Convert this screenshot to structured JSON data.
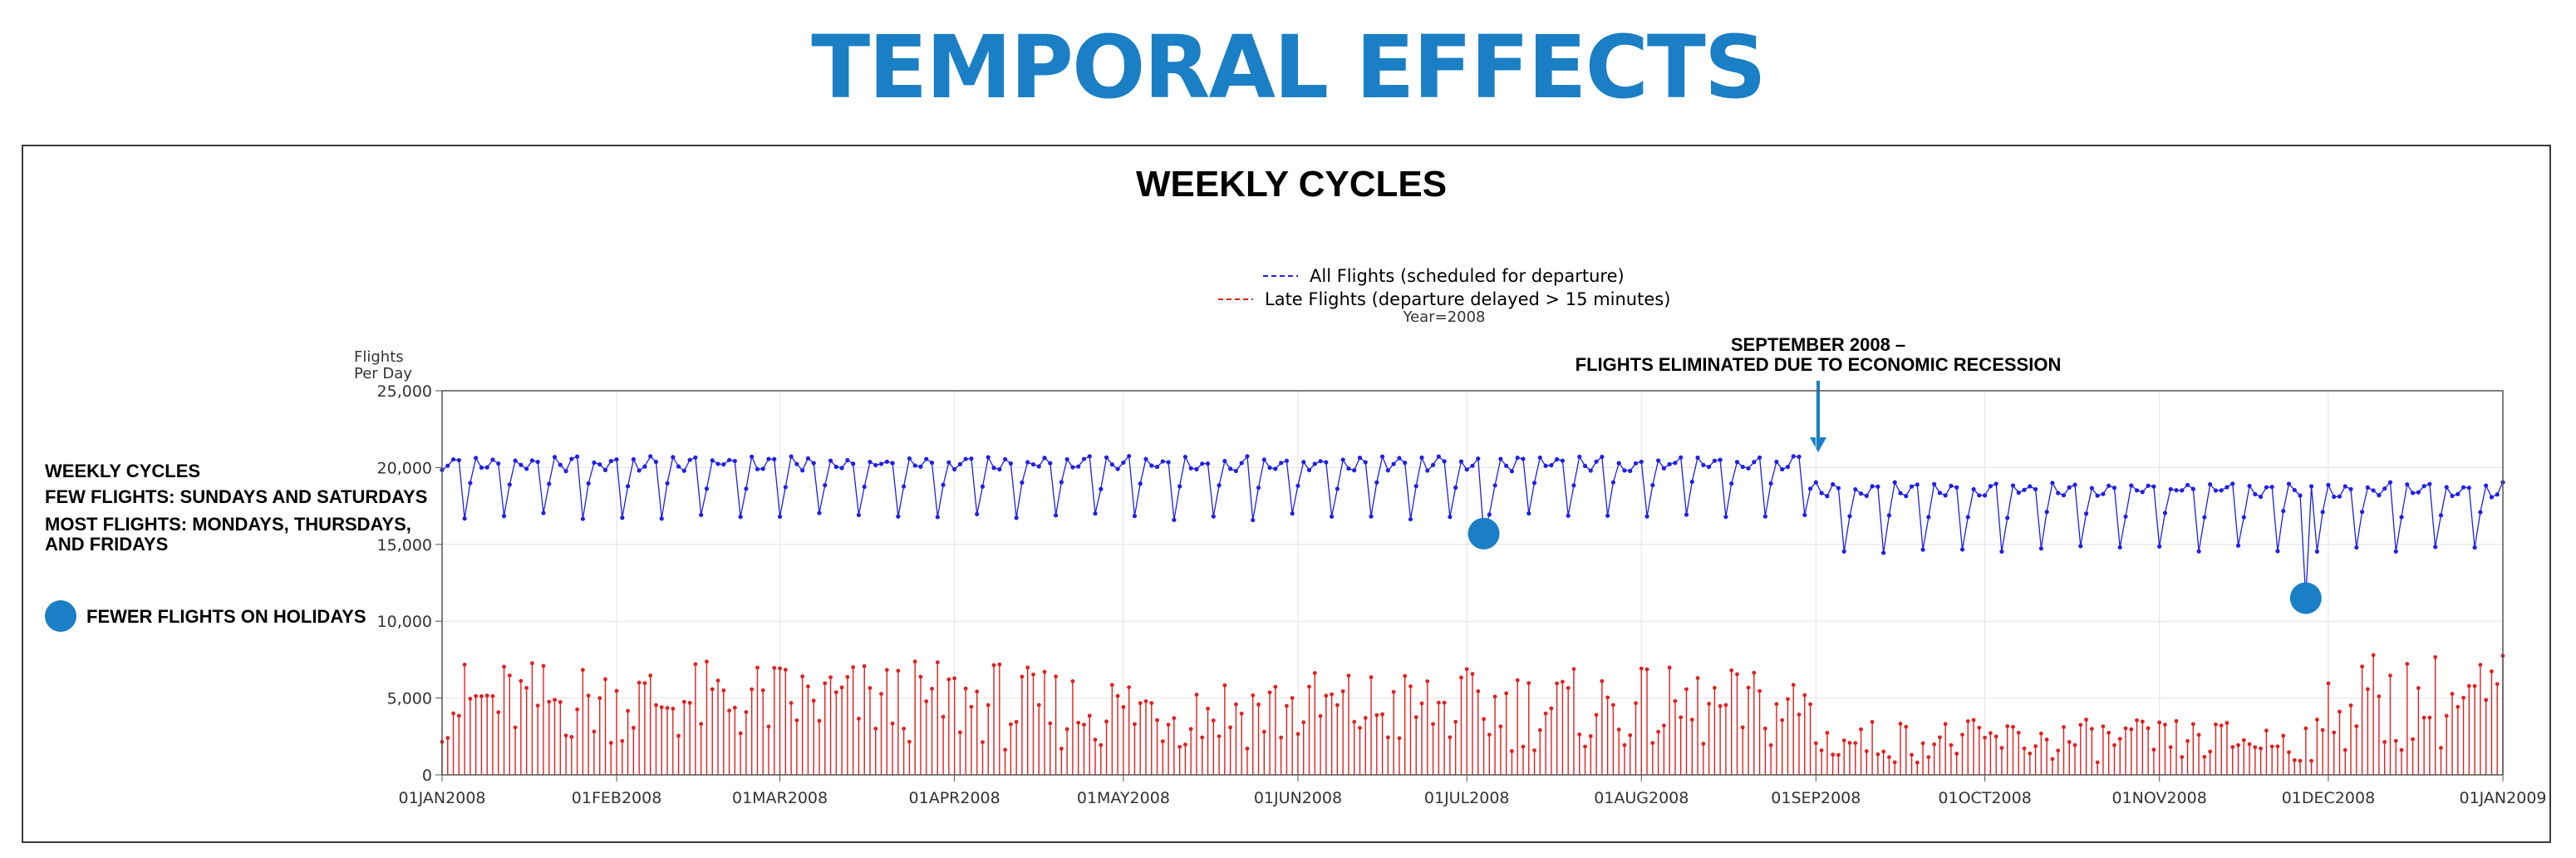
{
  "page": {
    "title": "TEMPORAL EFFECTS"
  },
  "annotations": {
    "side_notes": {
      "line1": "WEEKLY CYCLES",
      "line2": "FEW FLIGHTS: SUNDAYS AND SATURDAYS",
      "line3": "MOST FLIGHTS: MONDAYS, THURSDAYS,",
      "line4": "AND FRIDAYS"
    },
    "holiday_legend": "FEWER FLIGHTS ON HOLIDAYS",
    "september_line1": "SEPTEMBER 2008 –",
    "september_line2": "FLIGHTS ELIMINATED DUE TO ECONOMIC RECESSION",
    "colors": {
      "accent": "#1a7fc4"
    }
  },
  "chart_data": {
    "type": "line",
    "title": "WEEKLY CYCLES",
    "subtitle": "Year=2008",
    "ylabel_line1": "Flights",
    "ylabel_line2": "Per Day",
    "ylim": [
      0,
      25000
    ],
    "y_ticks": [
      "0",
      "5,000",
      "10,000",
      "15,000",
      "20,000",
      "25,000"
    ],
    "x_ticks": [
      "01JAN2008",
      "01FEB2008",
      "01MAR2008",
      "01APR2008",
      "01MAY2008",
      "01JUN2008",
      "01JUL2008",
      "01AUG2008",
      "01SEP2008",
      "01OCT2008",
      "01NOV2008",
      "01DEC2008",
      "01JAN2009"
    ],
    "x_range_days": [
      0,
      366
    ],
    "grid": true,
    "legend_placement": "top-center",
    "colors": {
      "all_flights": "#1f1fe6",
      "late_flights": "#e02020"
    },
    "series": [
      {
        "name": "All Flights (scheduled for departure)",
        "style": "dashed-legend, solid line with point markers",
        "weekly_pattern_note": "Daily values oscillate weekly: peaks on weekdays, troughs on Saturdays and Sundays",
        "segments": [
          {
            "from": "01JAN2008",
            "to": "31AUG2008",
            "weekday_peak": 20500,
            "weekend_trough": 16800
          },
          {
            "from": "01SEP2008",
            "to": "31DEC2008",
            "weekday_peak": 18800,
            "weekend_trough": 14700
          }
        ],
        "highlighted_points": [
          {
            "date": "04JUL2008",
            "value": 15700
          },
          {
            "date": "27NOV2008",
            "value": 11500
          }
        ]
      },
      {
        "name": "Late Flights (departure delayed > 15 minutes)",
        "style": "needle",
        "approx_range_jan_aug": [
          1500,
          7500
        ],
        "approx_range_sep_nov": [
          800,
          3800
        ],
        "approx_range_dec": [
          1500,
          8000
        ]
      }
    ]
  }
}
